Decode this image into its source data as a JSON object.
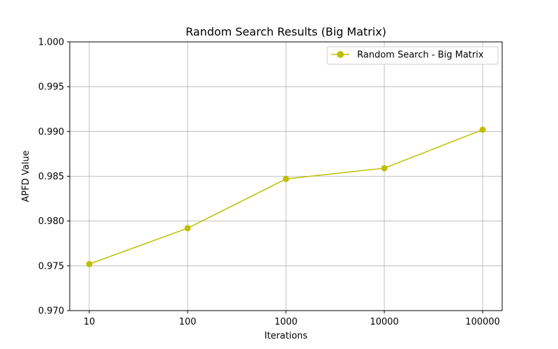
{
  "chart_data": {
    "type": "line",
    "title": "Random Search Results (Big Matrix)",
    "xlabel": "Iterations",
    "ylabel": "APFD Value",
    "x_scale": "log",
    "categories": [
      "10",
      "100",
      "1000",
      "10000",
      "100000"
    ],
    "x": [
      10,
      100,
      1000,
      10000,
      100000
    ],
    "ylim": [
      0.97,
      1.0
    ],
    "y_ticks": [
      "0.970",
      "0.975",
      "0.980",
      "0.985",
      "0.990",
      "0.995",
      "1.000"
    ],
    "y_tick_values": [
      0.97,
      0.975,
      0.98,
      0.985,
      0.99,
      0.995,
      1.0
    ],
    "grid": true,
    "legend_position": "top-right",
    "series": [
      {
        "name": "Random Search - Big Matrix",
        "color": "#bfbf00",
        "marker": "circle",
        "values": [
          0.9752,
          0.9792,
          0.9847,
          0.9859,
          0.9902
        ]
      }
    ]
  }
}
